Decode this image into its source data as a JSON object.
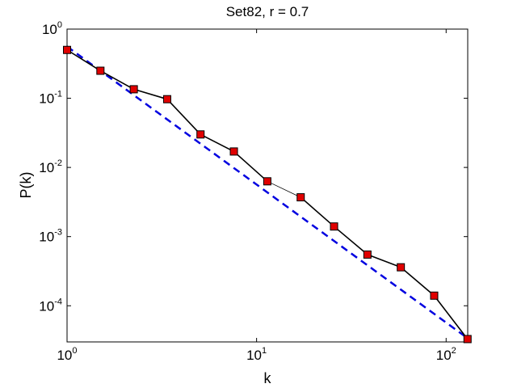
{
  "chart_data": {
    "type": "line",
    "title": "Set82, r = 0.7",
    "xlabel": "k",
    "ylabel": "P(k)",
    "xscale": "log",
    "yscale": "log",
    "xlim": [
      1,
      130
    ],
    "ylim": [
      3e-05,
      1
    ],
    "grid": false,
    "legend": "none",
    "x_ticks": [
      {
        "value": 1,
        "base": "10",
        "exp": "0"
      },
      {
        "value": 10,
        "base": "10",
        "exp": "1"
      },
      {
        "value": 100,
        "base": "10",
        "exp": "2"
      }
    ],
    "y_ticks": [
      {
        "value": 1,
        "base": "10",
        "exp": "0"
      },
      {
        "value": 0.1,
        "base": "10",
        "exp": "-1"
      },
      {
        "value": 0.01,
        "base": "10",
        "exp": "-2"
      },
      {
        "value": 0.001,
        "base": "10",
        "exp": "-3"
      },
      {
        "value": 0.0001,
        "base": "10",
        "exp": "-4"
      }
    ],
    "series": [
      {
        "style": "solid-black-with-red-square-markers",
        "color": "#000000",
        "marker_color": "#e00000",
        "x": [
          1.0,
          1.5,
          2.25,
          3.375,
          5.06,
          7.59,
          11.39,
          17.09,
          25.63,
          38.44,
          57.67,
          86.5,
          129.7
        ],
        "y": [
          0.5,
          0.25,
          0.135,
          0.097,
          0.03,
          0.017,
          0.0063,
          0.0037,
          0.0014,
          0.00055,
          0.00036,
          0.00014,
          3.3e-05
        ]
      },
      {
        "style": "dashed-blue-fit",
        "color": "#0000e0",
        "x": [
          1.0,
          129.7
        ],
        "y": [
          0.56,
          3.4e-05
        ]
      }
    ]
  }
}
